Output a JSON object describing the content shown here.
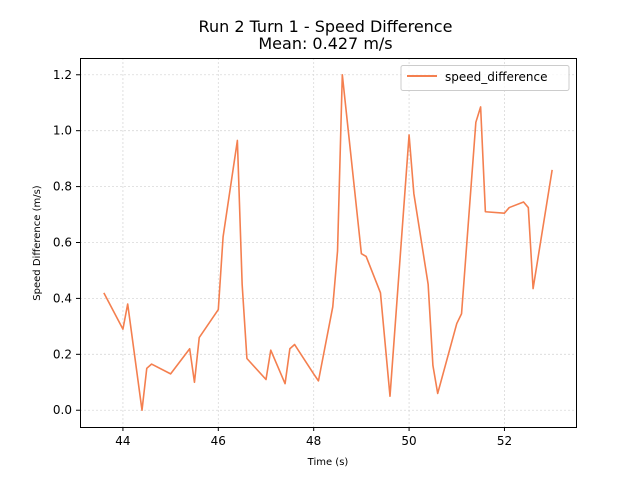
{
  "chart_data": {
    "type": "line",
    "title_line1": "Run 2 Turn 1 - Speed Difference",
    "title_line2": "Mean: 0.427 m/s",
    "xlabel": "Time (s)",
    "ylabel": "Speed Difference (m/s)",
    "xlim": [
      43.1,
      53.5
    ],
    "ylim": [
      -0.06,
      1.26
    ],
    "xticks": [
      44,
      46,
      48,
      50,
      52
    ],
    "yticks": [
      0.0,
      0.2,
      0.4,
      0.6,
      0.8,
      1.0,
      1.2
    ],
    "xtick_labels": [
      "44",
      "46",
      "48",
      "50",
      "52"
    ],
    "ytick_labels": [
      "0.0",
      "0.2",
      "0.4",
      "0.6",
      "0.8",
      "1.0",
      "1.2"
    ],
    "grid": true,
    "legend_position": "top-right",
    "series": [
      {
        "name": "speed_difference",
        "color": "#f47f4f",
        "x": [
          43.6,
          44.0,
          44.1,
          44.4,
          44.5,
          44.6,
          45.0,
          45.4,
          45.5,
          45.6,
          46.0,
          46.1,
          46.4,
          46.5,
          46.6,
          47.0,
          47.1,
          47.4,
          47.5,
          47.6,
          48.0,
          48.1,
          48.4,
          48.5,
          48.6,
          49.0,
          49.1,
          49.4,
          49.6,
          50.0,
          50.1,
          50.4,
          50.5,
          50.6,
          51.0,
          51.1,
          51.4,
          51.5,
          51.6,
          52.0,
          52.1,
          52.4,
          52.5,
          52.6,
          53.0
        ],
        "y": [
          0.42,
          0.29,
          0.38,
          0.0,
          0.15,
          0.165,
          0.13,
          0.22,
          0.1,
          0.26,
          0.36,
          0.62,
          0.965,
          0.45,
          0.185,
          0.11,
          0.215,
          0.095,
          0.22,
          0.235,
          0.13,
          0.105,
          0.37,
          0.57,
          1.2,
          0.56,
          0.55,
          0.42,
          0.05,
          0.985,
          0.775,
          0.45,
          0.16,
          0.06,
          0.31,
          0.345,
          1.03,
          1.085,
          0.71,
          0.705,
          0.725,
          0.745,
          0.725,
          0.435,
          0.86
        ]
      }
    ]
  }
}
